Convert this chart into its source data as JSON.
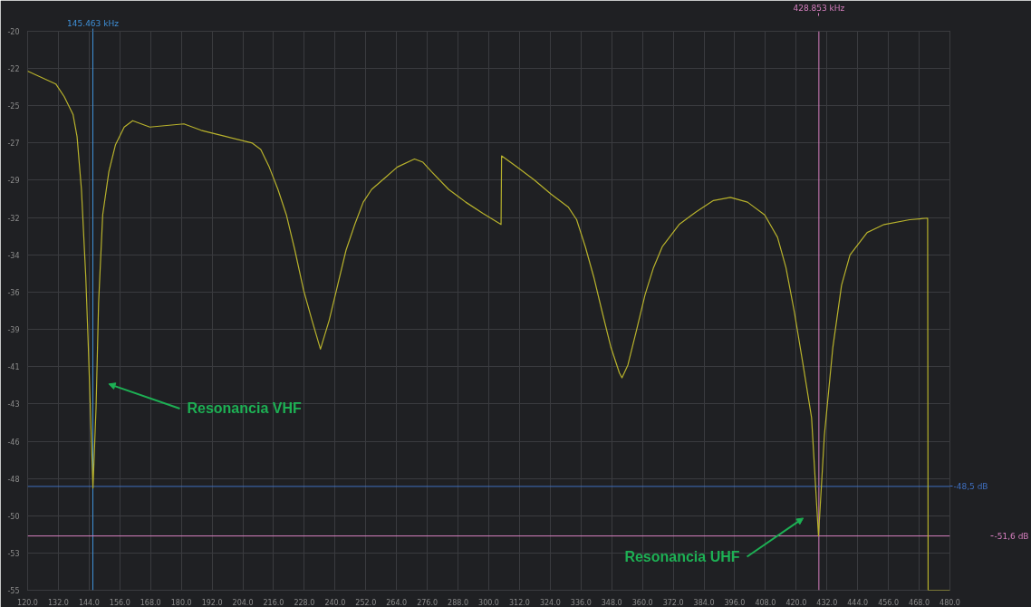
{
  "chart_data": {
    "type": "line",
    "x": [
      120,
      131,
      134.3,
      137.7,
      139.3,
      141,
      142.7,
      143.7,
      144.7,
      145.5,
      146.7,
      147.7,
      149.3,
      151.7,
      154.3,
      157.7,
      161,
      167.7,
      174.3,
      181,
      187.7,
      197.7,
      207.7,
      211,
      214.3,
      217.7,
      221,
      224.3,
      227.7,
      231,
      234.3,
      237.7,
      241,
      244.3,
      247.7,
      251,
      254.3,
      259.3,
      264.3,
      271,
      274.3,
      277.7,
      284.3,
      291,
      297.7,
      304.8,
      305,
      311,
      317.7,
      324.3,
      331,
      334.3,
      337.7,
      341,
      344.3,
      347.7,
      351,
      352,
      354.3,
      357.7,
      361,
      364.3,
      367.7,
      374.3,
      381,
      387.7,
      394.3,
      401,
      407.7,
      412.7,
      416,
      419.3,
      422.7,
      426,
      428.7,
      431,
      434.3,
      437.7,
      441,
      447.7,
      454.3,
      464.3,
      471.3,
      471.5,
      480
    ],
    "series": [
      {
        "color": "#b8b22c",
        "values": [
          -22.5,
          -23.3,
          -24.1,
          -25.2,
          -26.6,
          -29.9,
          -35.4,
          -39.8,
          -44.7,
          -48.6,
          -43.6,
          -37,
          -31.5,
          -28.8,
          -27.1,
          -26,
          -25.6,
          -26,
          -25.9,
          -25.8,
          -26.2,
          -26.6,
          -27,
          -27.4,
          -28.5,
          -29.9,
          -31.5,
          -33.7,
          -36.2,
          -38.1,
          -39.9,
          -38.1,
          -35.9,
          -33.7,
          -32.1,
          -30.7,
          -29.9,
          -29.2,
          -28.5,
          -28,
          -28.2,
          -28.8,
          -29.9,
          -30.7,
          -31.4,
          -32.1,
          -27.8,
          -28.5,
          -29.3,
          -30.2,
          -31,
          -31.8,
          -33.5,
          -35.4,
          -37.6,
          -39.8,
          -41.4,
          -41.7,
          -40.9,
          -38.7,
          -36.5,
          -34.8,
          -33.5,
          -32.1,
          -31.3,
          -30.6,
          -30.4,
          -30.7,
          -31.5,
          -32.9,
          -34.8,
          -37.6,
          -40.9,
          -44.2,
          -51.6,
          -45.3,
          -39.8,
          -35.9,
          -34,
          -32.6,
          -32.1,
          -31.8,
          -31.7,
          -55,
          -55
        ]
      }
    ],
    "xlim": [
      120,
      480
    ],
    "xticks": [
      {
        "value": 120,
        "label": "120.0"
      },
      {
        "value": 132,
        "label": "132.0"
      },
      {
        "value": 144,
        "label": "144.0"
      },
      {
        "value": 156,
        "label": "156.0"
      },
      {
        "value": 168,
        "label": "168.0"
      },
      {
        "value": 180,
        "label": "180.0"
      },
      {
        "value": 192,
        "label": "192.0"
      },
      {
        "value": 204,
        "label": "204.0"
      },
      {
        "value": 216,
        "label": "216.0"
      },
      {
        "value": 228,
        "label": "228.0"
      },
      {
        "value": 240,
        "label": "240.0"
      },
      {
        "value": 252,
        "label": "252.0"
      },
      {
        "value": 264,
        "label": "264.0"
      },
      {
        "value": 276,
        "label": "276.0"
      },
      {
        "value": 288,
        "label": "288.0"
      },
      {
        "value": 300,
        "label": "300.0"
      },
      {
        "value": 312,
        "label": "312.0"
      },
      {
        "value": 324,
        "label": "324.0"
      },
      {
        "value": 336,
        "label": "336.0"
      },
      {
        "value": 348,
        "label": "348.0"
      },
      {
        "value": 360,
        "label": "360.0"
      },
      {
        "value": 372,
        "label": "372.0"
      },
      {
        "value": 384,
        "label": "384.0"
      },
      {
        "value": 396,
        "label": "396.0"
      },
      {
        "value": 408,
        "label": "408.0"
      },
      {
        "value": 420,
        "label": "420.0"
      },
      {
        "value": 432,
        "label": "432.0"
      },
      {
        "value": 444,
        "label": "444.0"
      },
      {
        "value": 456,
        "label": "456.0"
      },
      {
        "value": 468,
        "label": "468.0"
      },
      {
        "value": 480,
        "label": "480.0"
      }
    ],
    "ylim": [
      -55,
      -20
    ],
    "yticks": [
      -20,
      {
        "value": -22.33,
        "label": "-22"
      },
      {
        "value": -24.67,
        "label": "-25"
      },
      -27,
      {
        "value": -29.33,
        "label": "-29"
      },
      {
        "value": -31.67,
        "label": "-32"
      },
      -34,
      {
        "value": -36.33,
        "label": "-36"
      },
      {
        "value": -38.67,
        "label": "-39"
      },
      -41,
      {
        "value": -43.33,
        "label": "-43"
      },
      {
        "value": -45.67,
        "label": "-46"
      },
      -48,
      {
        "value": -50.33,
        "label": "-50"
      },
      {
        "value": -52.67,
        "label": "-53"
      },
      -55
    ],
    "grid": true,
    "ref_lines": [
      {
        "axis": "x",
        "value": 145.463,
        "label": "145.463 kHz",
        "color": "#3f8fd6"
      },
      {
        "axis": "x",
        "value": 428.853,
        "label": "428.853 kHz",
        "color": "#d67fbf"
      },
      {
        "axis": "y",
        "value": -48.5,
        "label": "-48,5 dB",
        "color": "#3f6fc0"
      },
      {
        "axis": "y",
        "value": -51.6,
        "label": "-51,6 dB",
        "color": "#d67fbf"
      }
    ],
    "annotations": [
      "Resonancia VHF",
      "Resonancia UHF"
    ]
  }
}
